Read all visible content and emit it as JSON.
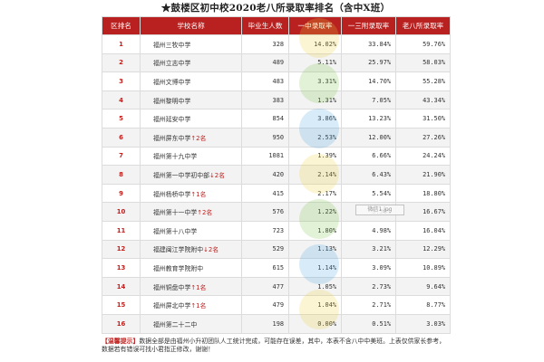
{
  "title": "★鼓楼区初中校2020老八所录取率排名（含中X班）",
  "columns": [
    "区排名",
    "学校名称",
    "毕业生人数",
    "一中录取率",
    "一三附录取率",
    "老八所录取率"
  ],
  "rows": [
    {
      "rank": "1",
      "school": "福州三牧中学",
      "arrow": "",
      "change": "",
      "grads": "328",
      "r1": "14.02%",
      "r2": "33.84%",
      "r3": "59.76%"
    },
    {
      "rank": "2",
      "school": "福州立志中学",
      "arrow": "",
      "change": "",
      "grads": "489",
      "r1": "5.11%",
      "r2": "25.97%",
      "r3": "58.03%"
    },
    {
      "rank": "3",
      "school": "福州文博中学",
      "arrow": "",
      "change": "",
      "grads": "483",
      "r1": "3.31%",
      "r2": "14.70%",
      "r3": "55.28%"
    },
    {
      "rank": "4",
      "school": "福州黎明中学",
      "arrow": "",
      "change": "",
      "grads": "383",
      "r1": "1.31%",
      "r2": "7.05%",
      "r3": "43.34%"
    },
    {
      "rank": "5",
      "school": "福州延安中学",
      "arrow": "",
      "change": "",
      "grads": "854",
      "r1": "3.86%",
      "r2": "13.23%",
      "r3": "31.50%"
    },
    {
      "rank": "6",
      "school": "福州屏东中学",
      "arrow": "↑",
      "change": "2名",
      "grads": "950",
      "r1": "2.53%",
      "r2": "12.00%",
      "r3": "27.26%"
    },
    {
      "rank": "7",
      "school": "福州第十九中学",
      "arrow": "",
      "change": "",
      "grads": "1081",
      "r1": "1.39%",
      "r2": "6.66%",
      "r3": "24.24%"
    },
    {
      "rank": "8",
      "school": "福州第一中学初中部",
      "arrow": "↓",
      "change": "2名",
      "grads": "420",
      "r1": "2.14%",
      "r2": "6.43%",
      "r3": "21.90%"
    },
    {
      "rank": "9",
      "school": "福州杨桥中学",
      "arrow": "↑",
      "change": "1名",
      "grads": "415",
      "r1": "2.17%",
      "r2": "5.54%",
      "r3": "18.80%"
    },
    {
      "rank": "10",
      "school": "福州第十一中学",
      "arrow": "↑",
      "change": "2名",
      "grads": "576",
      "r1": "1.22%",
      "r2": "5.56%",
      "r3": "16.67%"
    },
    {
      "rank": "11",
      "school": "福州第十八中学",
      "arrow": "",
      "change": "",
      "grads": "723",
      "r1": "1.80%",
      "r2": "4.98%",
      "r3": "16.04%"
    },
    {
      "rank": "12",
      "school": "福建闽江学院附中",
      "arrow": "↓",
      "change": "2名",
      "grads": "529",
      "r1": "1.13%",
      "r2": "3.21%",
      "r3": "12.29%"
    },
    {
      "rank": "13",
      "school": "福州教育学院附中",
      "arrow": "",
      "change": "",
      "grads": "615",
      "r1": "1.14%",
      "r2": "3.09%",
      "r3": "10.89%"
    },
    {
      "rank": "14",
      "school": "福州铜盘中学",
      "arrow": "↑",
      "change": "1名",
      "grads": "477",
      "r1": "1.05%",
      "r2": "2.73%",
      "r3": "9.64%"
    },
    {
      "rank": "15",
      "school": "福州屏北中学",
      "arrow": "↑",
      "change": "1名",
      "grads": "479",
      "r1": "1.04%",
      "r2": "2.71%",
      "r3": "8.77%"
    },
    {
      "rank": "16",
      "school": "福州第二十二中",
      "arrow": "",
      "change": "",
      "grads": "198",
      "r1": "0.00%",
      "r2": "0.51%",
      "r3": "3.03%"
    }
  ],
  "note": {
    "tag": "【温馨提示】",
    "text": "数据全部是由福州小升初团队人工统计完成，可能存在误差，其中，本表不含八中中美班。上表仅供家长参考，数据若有错误可找小君指正修改，谢谢！"
  },
  "badge": "微信1.jpg",
  "colors": {
    "header": "#b8211f",
    "accent": "#c0201e"
  }
}
